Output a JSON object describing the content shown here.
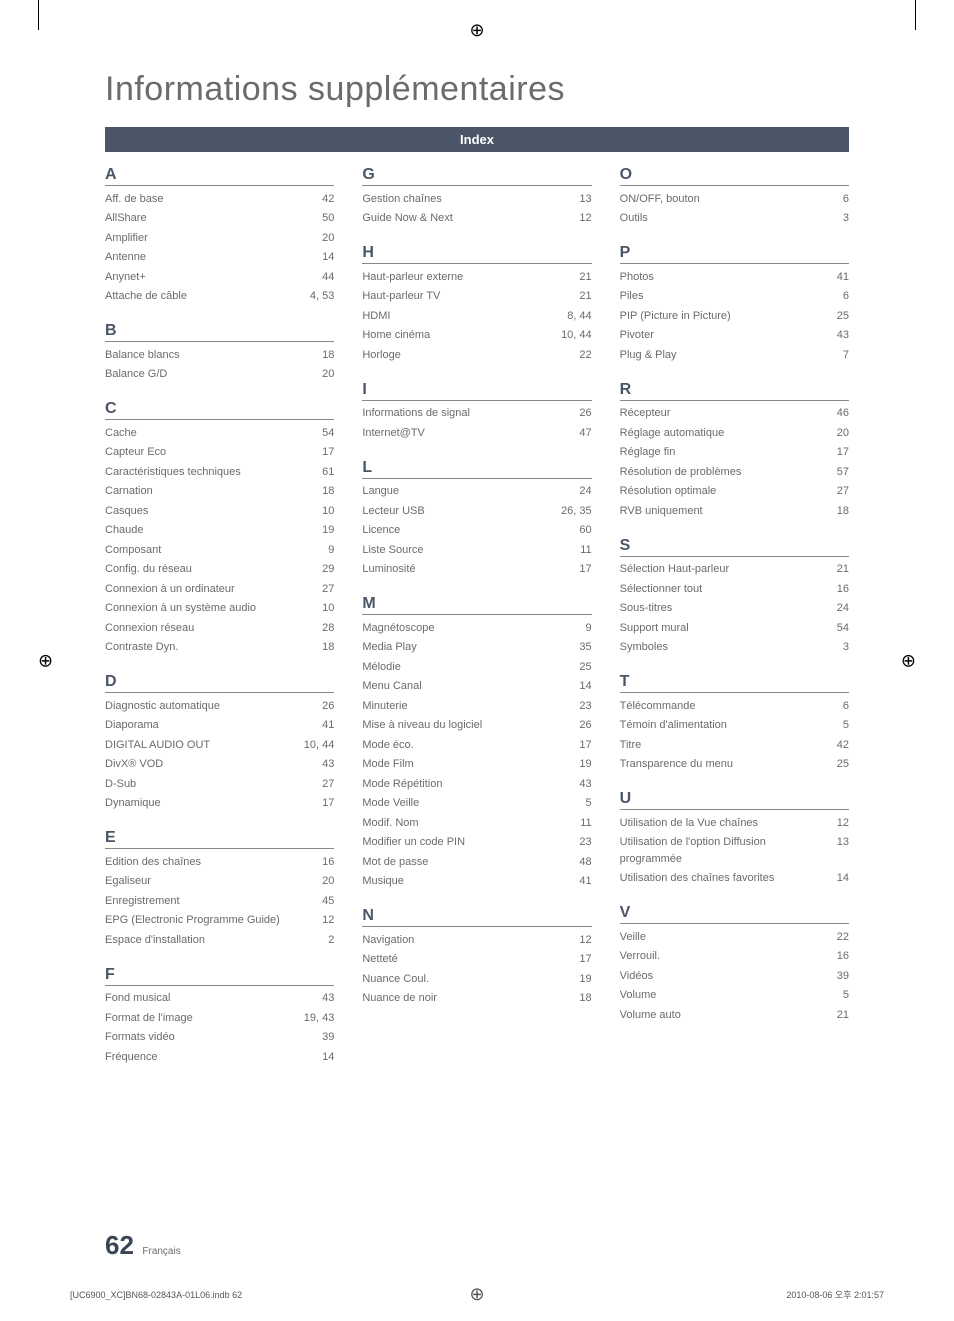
{
  "title": "Informations supplémentaires",
  "index_label": "Index",
  "page_number": "62",
  "page_lang": "Français",
  "bottom_left": "[UC6900_XC]BN68-02843A-01L06.indb   62",
  "bottom_right": "2010-08-06   오후 2:01:57",
  "columns": [
    [
      {
        "letter": "A",
        "entries": [
          {
            "name": "Aff. de base",
            "page": "42"
          },
          {
            "name": "AllShare",
            "page": "50"
          },
          {
            "name": "Amplifier",
            "page": "20"
          },
          {
            "name": "Antenne",
            "page": "14"
          },
          {
            "name": "Anynet+",
            "page": "44"
          },
          {
            "name": "Attache de câble",
            "page": "4, 53"
          }
        ]
      },
      {
        "letter": "B",
        "entries": [
          {
            "name": "Balance blancs",
            "page": "18"
          },
          {
            "name": "Balance G/D",
            "page": "20"
          }
        ]
      },
      {
        "letter": "C",
        "entries": [
          {
            "name": "Cache",
            "page": "54"
          },
          {
            "name": "Capteur Eco",
            "page": "17"
          },
          {
            "name": "Caractéristiques techniques",
            "page": "61"
          },
          {
            "name": "Carnation",
            "page": "18"
          },
          {
            "name": "Casques",
            "page": "10"
          },
          {
            "name": "Chaude",
            "page": "19"
          },
          {
            "name": "Composant",
            "page": "9"
          },
          {
            "name": "Config. du réseau",
            "page": "29"
          },
          {
            "name": "Connexion à un ordinateur",
            "page": "27"
          },
          {
            "name": "Connexion à un système audio",
            "page": "10"
          },
          {
            "name": "Connexion réseau",
            "page": "28"
          },
          {
            "name": "Contraste Dyn.",
            "page": "18"
          }
        ]
      },
      {
        "letter": "D",
        "entries": [
          {
            "name": "Diagnostic automatique",
            "page": "26"
          },
          {
            "name": "Diaporama",
            "page": "41"
          },
          {
            "name": "DIGITAL AUDIO OUT",
            "page": "10, 44"
          },
          {
            "name": "DivX® VOD",
            "page": "43"
          },
          {
            "name": "D-Sub",
            "page": "27"
          },
          {
            "name": "Dynamique",
            "page": "17"
          }
        ]
      },
      {
        "letter": "E",
        "entries": [
          {
            "name": "Edition des chaînes",
            "page": "16"
          },
          {
            "name": "Egaliseur",
            "page": "20"
          },
          {
            "name": "Enregistrement",
            "page": "45"
          },
          {
            "name": "EPG (Electronic Programme Guide)",
            "page": "12"
          },
          {
            "name": "Espace d'installation",
            "page": "2"
          }
        ]
      },
      {
        "letter": "F",
        "entries": [
          {
            "name": "Fond musical",
            "page": "43"
          },
          {
            "name": "Format de l'image",
            "page": "19, 43"
          },
          {
            "name": "Formats vidéo",
            "page": "39"
          },
          {
            "name": "Fréquence",
            "page": "14"
          }
        ]
      }
    ],
    [
      {
        "letter": "G",
        "entries": [
          {
            "name": "Gestion chaînes",
            "page": "13"
          },
          {
            "name": "Guide Now & Next",
            "page": "12"
          }
        ]
      },
      {
        "letter": "H",
        "entries": [
          {
            "name": "Haut-parleur externe",
            "page": "21"
          },
          {
            "name": "Haut-parleur TV",
            "page": "21"
          },
          {
            "name": "HDMI",
            "page": "8, 44"
          },
          {
            "name": "Home cinéma",
            "page": "10, 44"
          },
          {
            "name": "Horloge",
            "page": "22"
          }
        ]
      },
      {
        "letter": "I",
        "entries": [
          {
            "name": "Informations de signal",
            "page": "26"
          },
          {
            "name": "Internet@TV",
            "page": "47"
          }
        ]
      },
      {
        "letter": "L",
        "entries": [
          {
            "name": "Langue",
            "page": "24"
          },
          {
            "name": "Lecteur USB",
            "page": "26, 35"
          },
          {
            "name": "Licence",
            "page": "60"
          },
          {
            "name": "Liste Source",
            "page": "11"
          },
          {
            "name": "Luminosité",
            "page": "17"
          }
        ]
      },
      {
        "letter": "M",
        "entries": [
          {
            "name": "Magnétoscope",
            "page": "9"
          },
          {
            "name": "Media Play",
            "page": "35"
          },
          {
            "name": "Mélodie",
            "page": "25"
          },
          {
            "name": "Menu Canal",
            "page": "14"
          },
          {
            "name": "Minuterie",
            "page": "23"
          },
          {
            "name": "Mise à niveau du logiciel",
            "page": "26"
          },
          {
            "name": "Mode éco.",
            "page": "17"
          },
          {
            "name": "Mode Film",
            "page": "19"
          },
          {
            "name": "Mode Répétition",
            "page": "43"
          },
          {
            "name": "Mode Veille",
            "page": "5"
          },
          {
            "name": "Modif. Nom",
            "page": "11"
          },
          {
            "name": "Modifier un code PIN",
            "page": "23"
          },
          {
            "name": "Mot de passe",
            "page": "48"
          },
          {
            "name": "Musique",
            "page": "41"
          }
        ]
      },
      {
        "letter": "N",
        "entries": [
          {
            "name": "Navigation",
            "page": "12"
          },
          {
            "name": "Netteté",
            "page": "17"
          },
          {
            "name": "Nuance Coul.",
            "page": "19"
          },
          {
            "name": "Nuance de noir",
            "page": "18"
          }
        ]
      }
    ],
    [
      {
        "letter": "O",
        "entries": [
          {
            "name": "ON/OFF, bouton",
            "page": "6"
          },
          {
            "name": "Outils",
            "page": "3"
          }
        ]
      },
      {
        "letter": "P",
        "entries": [
          {
            "name": "Photos",
            "page": "41"
          },
          {
            "name": "Piles",
            "page": "6"
          },
          {
            "name": "PIP (Picture in Picture)",
            "page": "25"
          },
          {
            "name": "Pivoter",
            "page": "43"
          },
          {
            "name": "Plug & Play",
            "page": "7"
          }
        ]
      },
      {
        "letter": "R",
        "entries": [
          {
            "name": "Récepteur",
            "page": "46"
          },
          {
            "name": "Réglage automatique",
            "page": "20"
          },
          {
            "name": "Réglage fin",
            "page": "17"
          },
          {
            "name": "Résolution de problèmes",
            "page": "57"
          },
          {
            "name": "Résolution optimale",
            "page": "27"
          },
          {
            "name": "RVB uniquement",
            "page": "18"
          }
        ]
      },
      {
        "letter": "S",
        "entries": [
          {
            "name": "Sélection Haut-parleur",
            "page": "21"
          },
          {
            "name": "Sélectionner tout",
            "page": "16"
          },
          {
            "name": "Sous-titres",
            "page": "24"
          },
          {
            "name": "Support mural",
            "page": "54"
          },
          {
            "name": "Symboles",
            "page": "3"
          }
        ]
      },
      {
        "letter": "T",
        "entries": [
          {
            "name": "Télécommande",
            "page": "6"
          },
          {
            "name": "Témoin d'alimentation",
            "page": "5"
          },
          {
            "name": "Titre",
            "page": "42"
          },
          {
            "name": "Transparence du menu",
            "page": "25"
          }
        ]
      },
      {
        "letter": "U",
        "entries": [
          {
            "name": "Utilisation de la Vue chaînes",
            "page": "12"
          },
          {
            "name": "Utilisation de l'option Diffusion programmée",
            "page": "13"
          },
          {
            "name": "Utilisation des chaînes favorites",
            "page": "14"
          }
        ]
      },
      {
        "letter": "V",
        "entries": [
          {
            "name": "Veille",
            "page": "22"
          },
          {
            "name": "Verrouil.",
            "page": "16"
          },
          {
            "name": "Vidéos",
            "page": "39"
          },
          {
            "name": "Volume",
            "page": "5"
          },
          {
            "name": "Volume auto",
            "page": "21"
          }
        ]
      }
    ]
  ]
}
